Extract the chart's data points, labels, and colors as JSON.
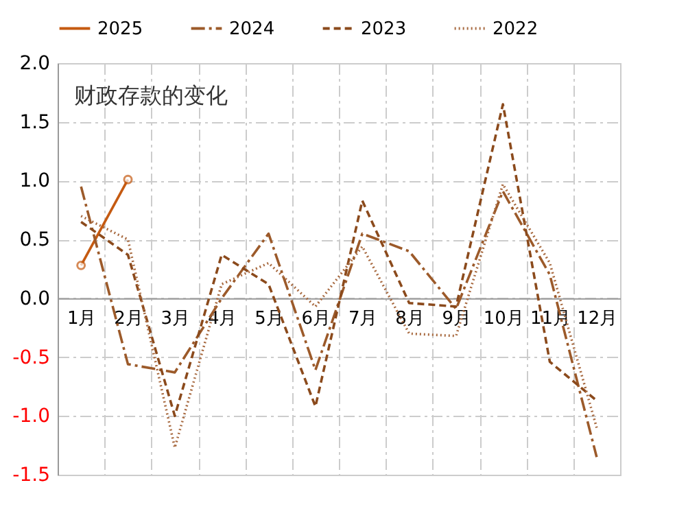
{
  "chart_data": {
    "type": "line",
    "title": "财政存款的变化",
    "categories": [
      "1月",
      "2月",
      "3月",
      "4月",
      "5月",
      "6月",
      "7月",
      "8月",
      "9月",
      "10月",
      "11月",
      "12月"
    ],
    "series": [
      {
        "name": "2025",
        "color": "#c55a11",
        "line_style": "solid",
        "marker": "circle",
        "values": [
          0.28,
          1.01,
          null,
          null,
          null,
          null,
          null,
          null,
          null,
          null,
          null,
          null
        ]
      },
      {
        "name": "2024",
        "color": "#9c5a2a",
        "line_style": "dashdot",
        "marker": "none",
        "values": [
          0.95,
          -0.56,
          -0.63,
          0.0,
          0.55,
          -0.61,
          0.55,
          0.4,
          -0.09,
          0.91,
          0.2,
          -1.35
        ]
      },
      {
        "name": "2023",
        "color": "#8b4a1c",
        "line_style": "dashed",
        "marker": "none",
        "values": [
          0.65,
          0.37,
          -1.0,
          0.37,
          0.12,
          -0.92,
          0.83,
          -0.04,
          -0.07,
          1.65,
          -0.54,
          -0.87
        ]
      },
      {
        "name": "2022",
        "color": "#a86a40",
        "line_style": "dotted",
        "marker": "none",
        "values": [
          0.7,
          0.5,
          -1.27,
          0.12,
          0.3,
          -0.07,
          0.44,
          -0.3,
          -0.32,
          0.97,
          0.3,
          -1.1
        ]
      }
    ],
    "ylim": [
      -1.5,
      2.0
    ],
    "yticks": [
      {
        "value": -1.5,
        "label": "-1.5"
      },
      {
        "value": -1,
        "label": "-1.0"
      },
      -0.5,
      {
        "value": 0,
        "label": "0.0"
      },
      0.5,
      {
        "value": 1,
        "label": "1.0"
      },
      1.5,
      {
        "value": 2,
        "label": "2.0"
      }
    ],
    "grid": true,
    "legend": "top"
  }
}
